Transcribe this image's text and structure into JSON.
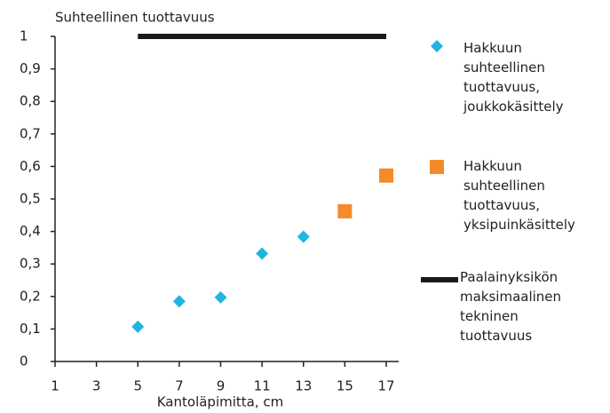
{
  "chart_data": {
    "type": "scatter",
    "title": "Suhteellinen tuottavuus",
    "x_label": "Kantoläpimitta, cm",
    "xlim": [
      1,
      17.6
    ],
    "xticks": [
      1,
      3,
      5,
      7,
      9,
      11,
      13,
      15,
      17
    ],
    "ylim": [
      0,
      1
    ],
    "yticks": [
      0,
      {
        "value": 0.1,
        "label": "0,1"
      },
      {
        "value": 0.2,
        "label": "0,2"
      },
      {
        "value": 0.3,
        "label": "0,3"
      },
      {
        "value": 0.4,
        "label": "0,4"
      },
      {
        "value": 0.5,
        "label": "0,5"
      },
      {
        "value": 0.6,
        "label": "0,6"
      },
      {
        "value": 0.7,
        "label": "0,7"
      },
      {
        "value": 0.8,
        "label": "0,8"
      },
      {
        "value": 0.9,
        "label": "0,9"
      },
      1
    ],
    "grid": false,
    "legend": "right",
    "series": [
      {
        "name": "Hakkuun suhteellinen tuottavuus, joukkokäsittely",
        "color": "#1fb5e0",
        "marker": "diamond",
        "x": [
          5,
          7,
          9,
          11,
          13
        ],
        "values": [
          0.107,
          0.185,
          0.197,
          0.332,
          0.384
        ]
      },
      {
        "name": "Hakkuun suhteellinen tuottavuus, yksipuinkäsittely",
        "color": "#f58a2a",
        "marker": "square",
        "x": [
          15,
          17
        ],
        "values": [
          0.462,
          0.572
        ]
      },
      {
        "name": "Paalainyksikön maksimaalinen tekninen tuottavuus",
        "color": "#1a1a1a",
        "marker": "line",
        "x": [
          5,
          17
        ],
        "values": [
          1,
          1
        ]
      }
    ]
  }
}
